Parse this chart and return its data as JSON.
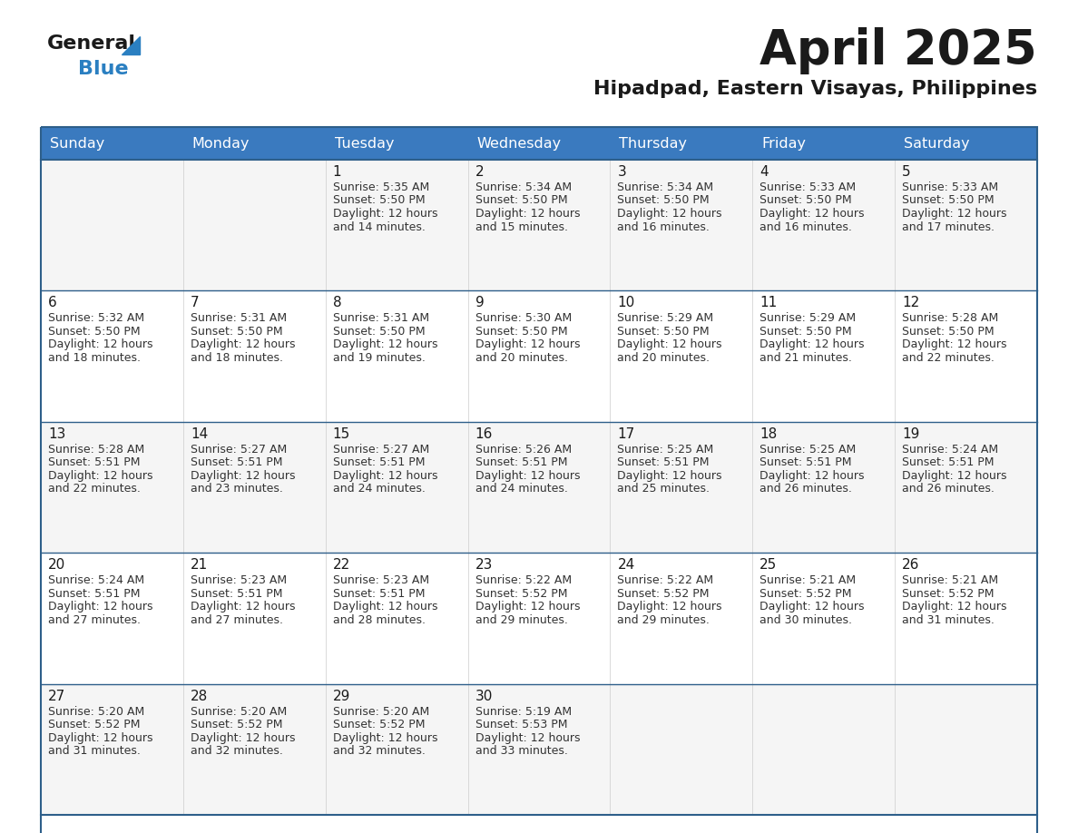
{
  "title": "April 2025",
  "subtitle": "Hipadpad, Eastern Visayas, Philippines",
  "header_bg_color": "#3a7abf",
  "header_text_color": "#ffffff",
  "row_bg_color_odd": "#f5f5f5",
  "row_bg_color_even": "#ffffff",
  "border_color": "#2e5f8a",
  "day_headers": [
    "Sunday",
    "Monday",
    "Tuesday",
    "Wednesday",
    "Thursday",
    "Friday",
    "Saturday"
  ],
  "title_color": "#1a1a1a",
  "subtitle_color": "#1a1a1a",
  "cell_text_color": "#333333",
  "day_num_color": "#1a1a1a",
  "logo_general_color": "#1a1a1a",
  "logo_blue_color": "#2a7fc1",
  "calendar_data": [
    [
      {
        "day": "",
        "sunrise": "",
        "sunset": "",
        "daylight": ""
      },
      {
        "day": "",
        "sunrise": "",
        "sunset": "",
        "daylight": ""
      },
      {
        "day": "1",
        "sunrise": "5:35 AM",
        "sunset": "5:50 PM",
        "daylight": "12 hours and 14 minutes."
      },
      {
        "day": "2",
        "sunrise": "5:34 AM",
        "sunset": "5:50 PM",
        "daylight": "12 hours and 15 minutes."
      },
      {
        "day": "3",
        "sunrise": "5:34 AM",
        "sunset": "5:50 PM",
        "daylight": "12 hours and 16 minutes."
      },
      {
        "day": "4",
        "sunrise": "5:33 AM",
        "sunset": "5:50 PM",
        "daylight": "12 hours and 16 minutes."
      },
      {
        "day": "5",
        "sunrise": "5:33 AM",
        "sunset": "5:50 PM",
        "daylight": "12 hours and 17 minutes."
      }
    ],
    [
      {
        "day": "6",
        "sunrise": "5:32 AM",
        "sunset": "5:50 PM",
        "daylight": "12 hours and 18 minutes."
      },
      {
        "day": "7",
        "sunrise": "5:31 AM",
        "sunset": "5:50 PM",
        "daylight": "12 hours and 18 minutes."
      },
      {
        "day": "8",
        "sunrise": "5:31 AM",
        "sunset": "5:50 PM",
        "daylight": "12 hours and 19 minutes."
      },
      {
        "day": "9",
        "sunrise": "5:30 AM",
        "sunset": "5:50 PM",
        "daylight": "12 hours and 20 minutes."
      },
      {
        "day": "10",
        "sunrise": "5:29 AM",
        "sunset": "5:50 PM",
        "daylight": "12 hours and 20 minutes."
      },
      {
        "day": "11",
        "sunrise": "5:29 AM",
        "sunset": "5:50 PM",
        "daylight": "12 hours and 21 minutes."
      },
      {
        "day": "12",
        "sunrise": "5:28 AM",
        "sunset": "5:50 PM",
        "daylight": "12 hours and 22 minutes."
      }
    ],
    [
      {
        "day": "13",
        "sunrise": "5:28 AM",
        "sunset": "5:51 PM",
        "daylight": "12 hours and 22 minutes."
      },
      {
        "day": "14",
        "sunrise": "5:27 AM",
        "sunset": "5:51 PM",
        "daylight": "12 hours and 23 minutes."
      },
      {
        "day": "15",
        "sunrise": "5:27 AM",
        "sunset": "5:51 PM",
        "daylight": "12 hours and 24 minutes."
      },
      {
        "day": "16",
        "sunrise": "5:26 AM",
        "sunset": "5:51 PM",
        "daylight": "12 hours and 24 minutes."
      },
      {
        "day": "17",
        "sunrise": "5:25 AM",
        "sunset": "5:51 PM",
        "daylight": "12 hours and 25 minutes."
      },
      {
        "day": "18",
        "sunrise": "5:25 AM",
        "sunset": "5:51 PM",
        "daylight": "12 hours and 26 minutes."
      },
      {
        "day": "19",
        "sunrise": "5:24 AM",
        "sunset": "5:51 PM",
        "daylight": "12 hours and 26 minutes."
      }
    ],
    [
      {
        "day": "20",
        "sunrise": "5:24 AM",
        "sunset": "5:51 PM",
        "daylight": "12 hours and 27 minutes."
      },
      {
        "day": "21",
        "sunrise": "5:23 AM",
        "sunset": "5:51 PM",
        "daylight": "12 hours and 27 minutes."
      },
      {
        "day": "22",
        "sunrise": "5:23 AM",
        "sunset": "5:51 PM",
        "daylight": "12 hours and 28 minutes."
      },
      {
        "day": "23",
        "sunrise": "5:22 AM",
        "sunset": "5:52 PM",
        "daylight": "12 hours and 29 minutes."
      },
      {
        "day": "24",
        "sunrise": "5:22 AM",
        "sunset": "5:52 PM",
        "daylight": "12 hours and 29 minutes."
      },
      {
        "day": "25",
        "sunrise": "5:21 AM",
        "sunset": "5:52 PM",
        "daylight": "12 hours and 30 minutes."
      },
      {
        "day": "26",
        "sunrise": "5:21 AM",
        "sunset": "5:52 PM",
        "daylight": "12 hours and 31 minutes."
      }
    ],
    [
      {
        "day": "27",
        "sunrise": "5:20 AM",
        "sunset": "5:52 PM",
        "daylight": "12 hours and 31 minutes."
      },
      {
        "day": "28",
        "sunrise": "5:20 AM",
        "sunset": "5:52 PM",
        "daylight": "12 hours and 32 minutes."
      },
      {
        "day": "29",
        "sunrise": "5:20 AM",
        "sunset": "5:52 PM",
        "daylight": "12 hours and 32 minutes."
      },
      {
        "day": "30",
        "sunrise": "5:19 AM",
        "sunset": "5:53 PM",
        "daylight": "12 hours and 33 minutes."
      },
      {
        "day": "",
        "sunrise": "",
        "sunset": "",
        "daylight": ""
      },
      {
        "day": "",
        "sunrise": "",
        "sunset": "",
        "daylight": ""
      },
      {
        "day": "",
        "sunrise": "",
        "sunset": "",
        "daylight": ""
      }
    ]
  ]
}
